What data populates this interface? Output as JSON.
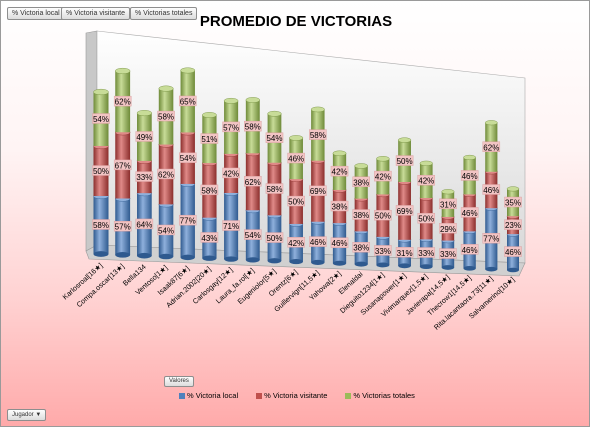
{
  "field_buttons": [
    "% Victoria local",
    "% Victoria visitante",
    "% Victorias totales"
  ],
  "valores_label": "Valores",
  "jugador_label": "Jugador",
  "jugador_arrow": "▼",
  "colors": {
    "local": "#4f81bd",
    "visitante": "#c0504d",
    "totales": "#9bbb59",
    "label_bg": "#f2c4c4"
  },
  "chart_data": {
    "type": "bar",
    "stacked": true,
    "style": "3d-cylinder",
    "title": "PROMEDIO DE VICTORIAS",
    "categories": [
      "Karlosroal[16★]",
      "Compa.oscar[13★]",
      "Bella134",
      "Ventoso[1★]",
      "Isaak87[6★]",
      "Adrian.2002[20★]",
      "Carlosgay[12★]",
      "Laura_fa.rol[★]",
      "Eugeniolor[5★]",
      "Orentz[6★]",
      "Guillervign[11,5★]",
      "Yahowa[2★]",
      "Elenaldai",
      "Dieguito1234[1★]",
      "Susanapower[1★]",
      "Vivimarquez[1,5★]",
      "Javierapa[14,5★]",
      "Thecrow1[14,5★]",
      "Rita.lacantaora.73[11★]",
      "Salvamerino[10★]"
    ],
    "series": [
      {
        "name": "% Victoria local",
        "values": [
          58,
          57,
          64,
          54,
          77,
          43,
          71,
          54,
          50,
          42,
          46,
          46,
          38,
          33,
          31,
          33,
          33,
          46,
          77,
          46
        ]
      },
      {
        "name": "% Victoria visitante",
        "values": [
          50,
          67,
          33,
          62,
          54,
          58,
          42,
          62,
          58,
          50,
          69,
          38,
          38,
          50,
          69,
          50,
          29,
          46,
          46,
          23
        ]
      },
      {
        "name": "% Victorias totales",
        "values": [
          54,
          62,
          49,
          58,
          65,
          51,
          57,
          58,
          54,
          46,
          58,
          42,
          38,
          42,
          50,
          42,
          31,
          46,
          62,
          35
        ]
      }
    ],
    "unit": "%",
    "legend_position": "bottom",
    "grid": false
  }
}
